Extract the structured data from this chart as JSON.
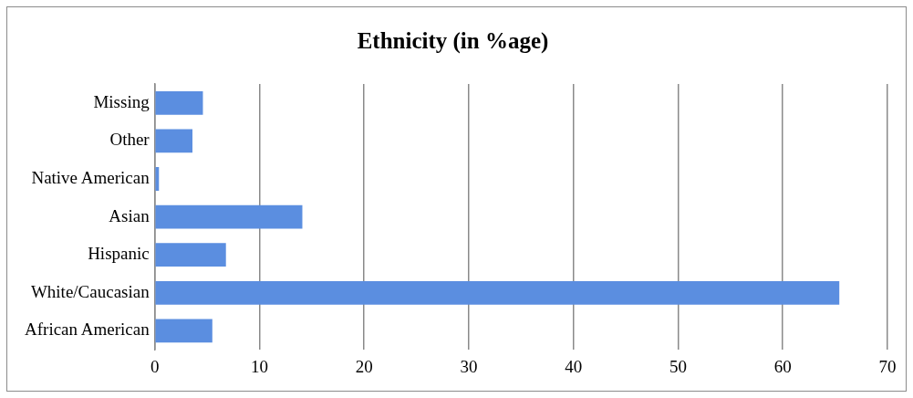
{
  "chart_data": {
    "type": "bar",
    "orientation": "horizontal",
    "title": "Ethnicity (in %age)",
    "categories": [
      "Missing",
      "Other",
      "Native American",
      "Asian",
      "Hispanic",
      "White/Caucasian",
      "African American"
    ],
    "values": [
      4.6,
      3.6,
      0.4,
      14.1,
      6.8,
      65.4,
      5.5
    ],
    "color": "#5b8ee0",
    "xlim": [
      0,
      70
    ],
    "xticks": [
      0,
      10,
      20,
      30,
      40,
      50,
      60,
      70
    ],
    "grid": "x",
    "legend": false
  }
}
